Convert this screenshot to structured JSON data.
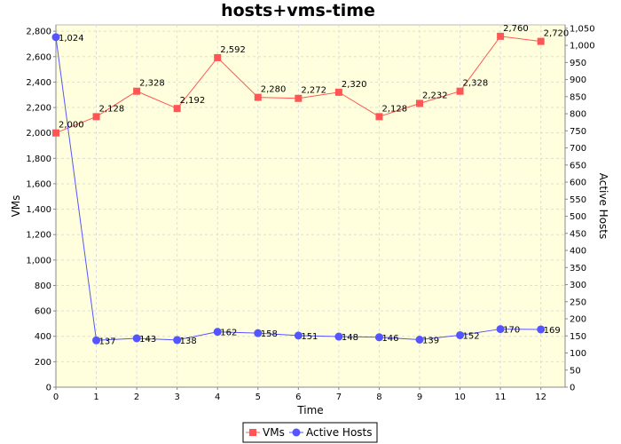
{
  "chart_data": {
    "type": "line",
    "title": "hosts+vms-time",
    "xlabel": "Time",
    "ylabel_left": "VMs",
    "ylabel_right": "Active Hosts",
    "x": [
      0,
      1,
      2,
      3,
      4,
      5,
      6,
      7,
      8,
      9,
      10,
      11,
      12
    ],
    "xlim": [
      0,
      12.6
    ],
    "ylim_left": [
      0,
      2850
    ],
    "ylim_right": [
      0,
      1060
    ],
    "left_ticks": [
      0,
      200,
      400,
      600,
      800,
      1000,
      1200,
      1400,
      1600,
      1800,
      2000,
      2200,
      2400,
      2600,
      2800
    ],
    "right_ticks": [
      0,
      50,
      100,
      150,
      200,
      250,
      300,
      350,
      400,
      450,
      500,
      550,
      600,
      650,
      700,
      750,
      800,
      850,
      900,
      950,
      1000,
      1050
    ],
    "grid": true,
    "legend": "bottom-center",
    "series": [
      {
        "name": "VMs",
        "axis": "left",
        "color": "#ff5555",
        "marker": "square",
        "values": [
          2000,
          2128,
          2328,
          2192,
          2592,
          2280,
          2272,
          2320,
          2128,
          2232,
          2328,
          2760,
          2720
        ],
        "labels": [
          "2,000",
          "2,128",
          "2,328",
          "2,192",
          "2,592",
          "2,280",
          "2,272",
          "2,320",
          "2,128",
          "2,232",
          "2,328",
          "2,760",
          "2,720"
        ]
      },
      {
        "name": "Active Hosts",
        "axis": "right",
        "color": "#5555ff",
        "marker": "circle",
        "values": [
          1024,
          137,
          143,
          138,
          162,
          158,
          151,
          148,
          146,
          139,
          152,
          170,
          169
        ],
        "labels": [
          "1,024",
          "137",
          "143",
          "138",
          "162",
          "158",
          "151",
          "148",
          "146",
          "139",
          "152",
          "170",
          "169"
        ]
      }
    ]
  }
}
